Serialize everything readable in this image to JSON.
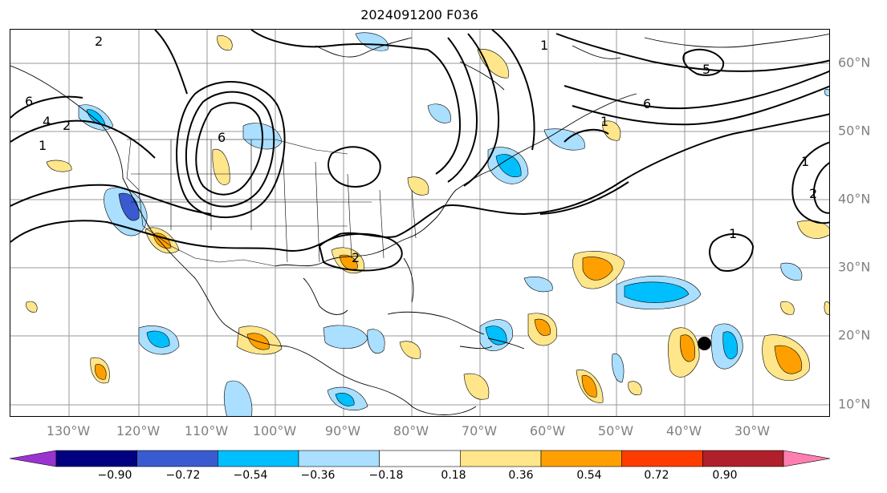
{
  "title": "2024091200 F036",
  "longitude_labels": [
    "130°W",
    "120°W",
    "110°W",
    "100°W",
    "90°W",
    "80°W",
    "70°W",
    "60°W",
    "50°W",
    "40°W",
    "30°W"
  ],
  "latitude_labels": [
    "60°N",
    "50°N",
    "40°N",
    "30°N",
    "20°N",
    "10°N"
  ],
  "colorbar": {
    "ticks": [
      "−0.90",
      "−0.72",
      "−0.54",
      "−0.36",
      "−0.18",
      "0.18",
      "0.36",
      "0.54",
      "0.72",
      "0.90"
    ],
    "colors": [
      "#9a33d0",
      "#000080",
      "#3a5bd0",
      "#00bfff",
      "#aadfff",
      "#ffffff",
      "#ffe68a",
      "#ffa000",
      "#ff3c00",
      "#b0202a",
      "#ff80b0"
    ]
  },
  "contour_labels": [
    "6",
    "4",
    "2",
    "1",
    "2",
    "6",
    "1",
    "6",
    "5",
    "1",
    "2",
    "2",
    "1",
    "1"
  ],
  "features": {
    "marker": "storm-center-marker"
  }
}
